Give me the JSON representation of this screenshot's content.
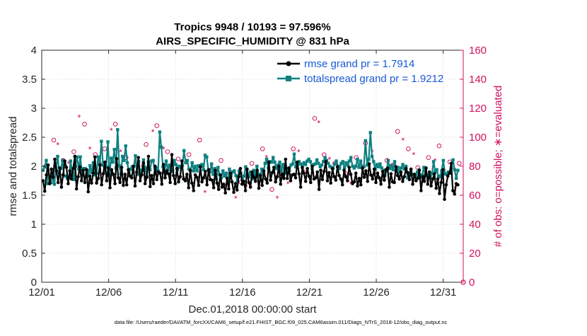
{
  "chart_data": {
    "type": "line",
    "title_line1": "Tropics 9948 / 10193 = 97.596%",
    "title_line2": "AIRS_SPECIFIC_HUMIDITY @ 831 hPa",
    "xlabel": "Dec.01,2018 00:00:00 start",
    "ylabel": "rmse and totalspread",
    "y2label": "# of obs: o=possible; ∗=evaluated",
    "footnote": "data file: /Users/raeder/DAI/ATM_forcXX/CAM6_setup/f.e21.FHIST_BGC.f09_025.CAM6assim.011/Diags_NTrS_2018-12/obs_diag_output.nc",
    "xlim": [
      0,
      31.5
    ],
    "ylim": [
      0,
      4
    ],
    "y2lim": [
      0,
      160
    ],
    "x_ticks": [
      0,
      5,
      10,
      15,
      20,
      25,
      30
    ],
    "x_tick_labels": [
      "12/01",
      "12/06",
      "12/11",
      "12/16",
      "12/21",
      "12/26",
      "12/31"
    ],
    "y_tick_labels": [
      "0",
      "0.5",
      "1",
      "1.5",
      "2",
      "2.5",
      "3",
      "3.5",
      "4"
    ],
    "y2_tick_labels": [
      "0",
      "20",
      "40",
      "60",
      "80",
      "100",
      "120",
      "140",
      "160"
    ],
    "colors": {
      "rmse": "#000000",
      "spread": "#0f8080",
      "obs": "#cc0055",
      "axis_right": "#d1105d"
    },
    "legend": {
      "position": "top-right",
      "entries": [
        "rmse grand pr = 1.7914",
        "totalspread grand pr = 1.9212"
      ]
    },
    "series": [
      {
        "name": "rmse",
        "values": [
          1.75,
          1.57,
          1.85,
          2.02,
          1.7,
          1.95,
          1.81,
          2.12,
          1.92,
          1.72,
          1.97,
          1.64,
          1.85,
          2.09,
          1.98,
          1.7,
          1.92,
          1.78,
          1.96,
          2.17,
          1.61,
          1.82,
          1.99,
          1.75,
          1.93,
          1.72,
          1.94,
          1.56,
          1.83,
          1.71,
          1.88,
          2.16,
          1.71,
          1.79,
          2.02,
          1.68,
          1.87,
          2.07,
          1.75,
          1.97,
          1.63,
          1.94,
          1.86,
          1.7,
          2.13,
          1.8,
          1.72,
          1.98,
          1.67,
          1.86,
          1.68,
          1.94,
          1.83,
          1.8,
          2.0,
          1.66,
          1.9,
          2.15,
          1.75,
          1.85,
          2.06,
          1.7,
          1.81,
          2.17,
          1.65,
          1.84,
          1.7,
          2.0,
          1.77,
          1.9,
          1.88,
          1.69,
          2.03,
          1.8,
          1.92,
          1.87,
          1.72,
          2.2,
          1.84,
          1.7,
          1.96,
          1.73,
          1.82,
          2.09,
          1.78,
          1.75,
          1.86,
          1.63,
          1.93,
          1.71,
          1.58,
          1.85,
          1.81,
          1.67,
          1.99,
          1.73,
          1.8,
          1.91,
          1.68,
          1.94,
          1.77,
          1.76,
          1.63,
          1.93,
          1.71,
          1.6,
          1.85,
          1.64,
          1.69,
          1.54,
          1.79,
          1.61,
          1.88,
          1.73,
          1.55,
          1.7,
          1.59,
          1.82,
          1.96,
          1.69,
          1.74,
          1.58,
          1.95,
          1.72,
          1.64,
          1.9,
          1.81,
          1.74,
          1.93,
          1.62,
          1.84,
          1.67,
          1.92,
          1.78,
          1.71,
          2.07,
          1.76,
          1.89,
          1.98,
          1.73,
          1.82,
          2.0,
          1.69,
          1.86,
          1.79,
          2.12,
          1.79,
          1.97,
          1.75,
          1.85,
          1.86,
          1.8,
          2.07,
          1.87,
          1.64,
          1.98,
          1.88,
          1.74,
          1.96,
          1.83,
          1.72,
          2.0,
          1.78,
          1.8,
          1.9,
          1.6,
          1.93,
          1.77,
          1.91,
          2.08,
          1.75,
          1.89,
          1.71,
          1.96,
          1.82,
          1.76,
          1.99,
          1.84,
          1.78,
          1.68,
          1.93,
          1.82,
          1.75,
          1.98,
          1.86,
          1.7,
          1.73,
          1.88,
          1.66,
          1.79,
          1.68,
          1.97,
          1.81,
          1.92,
          1.74,
          2.04,
          1.85,
          1.78,
          1.95,
          1.72,
          1.88,
          1.8,
          1.69,
          1.91,
          1.76,
          1.94,
          1.97,
          1.64,
          1.87,
          1.73,
          1.72,
          1.99,
          1.84,
          1.78,
          1.9,
          1.74,
          1.82,
          1.96,
          1.89,
          1.77,
          1.95,
          1.69,
          1.86,
          1.75,
          1.79,
          1.93,
          1.58,
          1.82,
          1.74,
          1.97,
          1.69,
          1.9,
          1.66,
          1.78,
          1.87,
          1.62,
          1.78,
          1.53,
          1.72,
          1.94,
          1.43,
          1.68,
          1.83,
          1.88,
          2.05,
          1.58,
          1.52,
          1.7,
          1.68
        ]
      },
      {
        "name": "totalspread",
        "values": [
          1.93,
          1.99,
          2.1,
          1.7,
          1.71,
          1.72,
          1.82,
          1.69,
          1.97,
          2.17,
          1.89,
          1.96,
          2.1,
          1.83,
          1.83,
          1.79,
          1.8,
          2.09,
          1.89,
          1.77,
          2.0,
          2.16,
          1.95,
          2.16,
          1.86,
          1.96,
          1.96,
          1.93,
          1.83,
          2.01,
          1.89,
          2.06,
          1.85,
          1.88,
          2.16,
          2.03,
          2.43,
          2.02,
          1.91,
          2.0,
          2.42,
          1.84,
          2.14,
          2.07,
          2.29,
          1.97,
          2.63,
          2.01,
          1.87,
          2.17,
          2.1,
          2.35,
          2.06,
          1.88,
          1.95,
          1.99,
          2.0,
          2.18,
          1.86,
          2.08,
          1.87,
          1.93,
          2.11,
          1.97,
          1.82,
          2.07,
          1.94,
          2.09,
          2.1,
          1.87,
          1.97,
          1.92,
          2.59,
          2.33,
          1.99,
          1.91,
          2.09,
          1.94,
          2.02,
          1.91,
          1.93,
          2.1,
          2.03,
          1.94,
          2.0,
          1.98,
          2.01,
          2.27,
          2.06,
          2.1,
          1.95,
          1.92,
          2.06,
          1.92,
          2.0,
          1.92,
          2.01,
          2.01,
          2.03,
          1.94,
          2.19,
          2.16,
          1.93,
          1.9,
          2.04,
          1.86,
          1.96,
          1.78,
          1.98,
          1.85,
          1.8,
          1.92,
          1.83,
          1.88,
          1.72,
          1.95,
          1.84,
          1.9,
          1.92,
          1.84,
          1.74,
          1.92,
          1.88,
          1.79,
          1.83,
          1.99,
          1.87,
          1.82,
          1.9,
          1.78,
          1.93,
          1.84,
          2.0,
          1.86,
          1.82,
          1.95,
          1.88,
          2.05,
          2.12,
          1.97,
          2.08,
          2.07,
          2.15,
          2.07,
          1.96,
          2.02,
          2.07,
          1.91,
          2.03,
          1.88,
          1.95,
          1.96,
          1.93,
          2.02,
          2.04,
          2.21,
          1.99,
          2.03,
          2.08,
          2.04,
          1.98,
          2.06,
          2.03,
          2.09,
          2.12,
          2.08,
          1.96,
          2.03,
          2.04,
          2.11,
          2.05,
          1.99,
          2.02,
          2.08,
          2.15,
          2.1,
          2.05,
          2.0,
          1.98,
          1.96,
          2.04,
          2.09,
          2.0,
          1.96,
          2.05,
          2.08,
          1.97,
          2.06,
          2.02,
          2.09,
          2.15,
          2.0,
          1.97,
          2.0,
          2.12,
          1.98,
          2.09,
          1.97,
          1.99,
          2.44,
          2.02,
          2.12,
          2.58,
          2.17,
          2.08,
          1.94,
          2.03,
          1.99,
          2.04,
          1.97,
          1.93,
          1.84,
          1.92,
          2.1,
          1.96,
          2.01,
          1.94,
          2.08,
          1.93,
          1.98,
          1.89,
          1.97,
          2.03,
          1.95,
          2.0,
          1.8,
          1.88,
          1.94,
          1.85,
          1.86,
          1.83,
          1.9,
          1.94,
          1.81,
          1.85,
          1.98,
          1.84,
          1.85,
          1.83,
          1.82,
          1.87,
          2.08,
          1.91,
          1.94,
          1.83,
          1.82,
          1.92,
          2.1,
          1.87,
          1.86,
          1.9,
          1.88,
          1.98,
          2.11,
          1.94,
          1.79,
          1.93
        ]
      },
      {
        "name": "possible",
        "axis": "right",
        "x": [
          0.3,
          0.9,
          1.6,
          2.4,
          3.2,
          4.0,
          4.7,
          5.5,
          6.3,
          7.1,
          7.8,
          8.6,
          9.4,
          10.2,
          11.0,
          11.8,
          12.6,
          13.4,
          14.1,
          14.9,
          15.7,
          16.5,
          17.2,
          18.0,
          18.8,
          19.6,
          20.4,
          21.1,
          21.9,
          22.7,
          23.5,
          24.2,
          25.0,
          25.8,
          26.6,
          27.4,
          28.1,
          28.9,
          29.7,
          30.5,
          31.2
        ],
        "values": [
          80,
          98,
          84,
          90,
          109,
          88,
          92,
          109,
          86,
          83,
          95,
          108,
          90,
          85,
          88,
          98,
          77,
          84,
          76,
          69,
          82,
          92,
          64,
          74,
          92,
          76,
          113,
          88,
          82,
          75,
          86,
          96,
          74,
          84,
          104,
          92,
          79,
          86,
          94,
          83,
          82
        ]
      },
      {
        "name": "evaluated",
        "axis": "right",
        "x": [
          0.5,
          1.2,
          2.0,
          2.8,
          3.6,
          4.4,
          5.2,
          5.9,
          6.7,
          7.5,
          8.3,
          9.1,
          9.8,
          10.6,
          11.4,
          12.2,
          12.9,
          13.7,
          14.5,
          15.3,
          16.1,
          16.8,
          17.6,
          18.4,
          19.2,
          20.0,
          20.7,
          21.5,
          22.3,
          23.1,
          23.9,
          24.7,
          25.4,
          26.2,
          27.0,
          27.8,
          28.6,
          29.4,
          30.1,
          30.9
        ],
        "values": [
          76,
          95,
          82,
          114,
          92,
          82,
          105,
          90,
          78,
          80,
          104,
          92,
          81,
          72,
          78,
          62,
          74,
          66,
          58,
          66,
          75,
          86,
          58,
          68,
          90,
          72,
          110,
          85,
          80,
          68,
          80,
          90,
          71,
          81,
          98,
          88,
          76,
          84,
          77,
          65
        ]
      }
    ]
  }
}
